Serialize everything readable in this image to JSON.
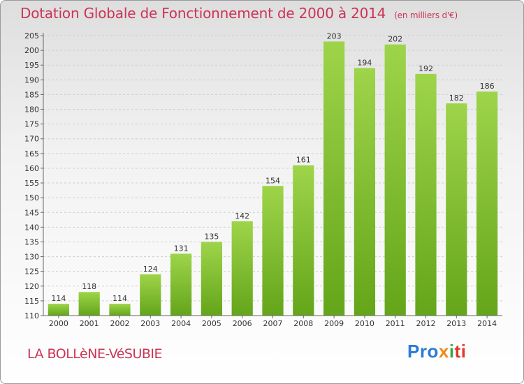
{
  "chart_data": {
    "type": "bar",
    "title": "Dotation Globale de Fonctionnement de 2000 à 2014",
    "subtitle": "(en milliers d'€)",
    "categories": [
      "2000",
      "2001",
      "2002",
      "2003",
      "2004",
      "2005",
      "2006",
      "2007",
      "2008",
      "2009",
      "2010",
      "2011",
      "2012",
      "2013",
      "2014"
    ],
    "values": [
      114,
      118,
      114,
      124,
      131,
      135,
      142,
      154,
      161,
      203,
      194,
      202,
      192,
      182,
      186
    ],
    "ylim": [
      110,
      205
    ],
    "ytick_step": 5,
    "xlabel": "",
    "ylabel": "",
    "bar_color": "#7fc23a",
    "grid": true
  },
  "footer": {
    "commune": "LA BOLLèNE-VéSUBIE",
    "logo_parts": [
      "Pro",
      "x",
      "i",
      "ti"
    ]
  }
}
